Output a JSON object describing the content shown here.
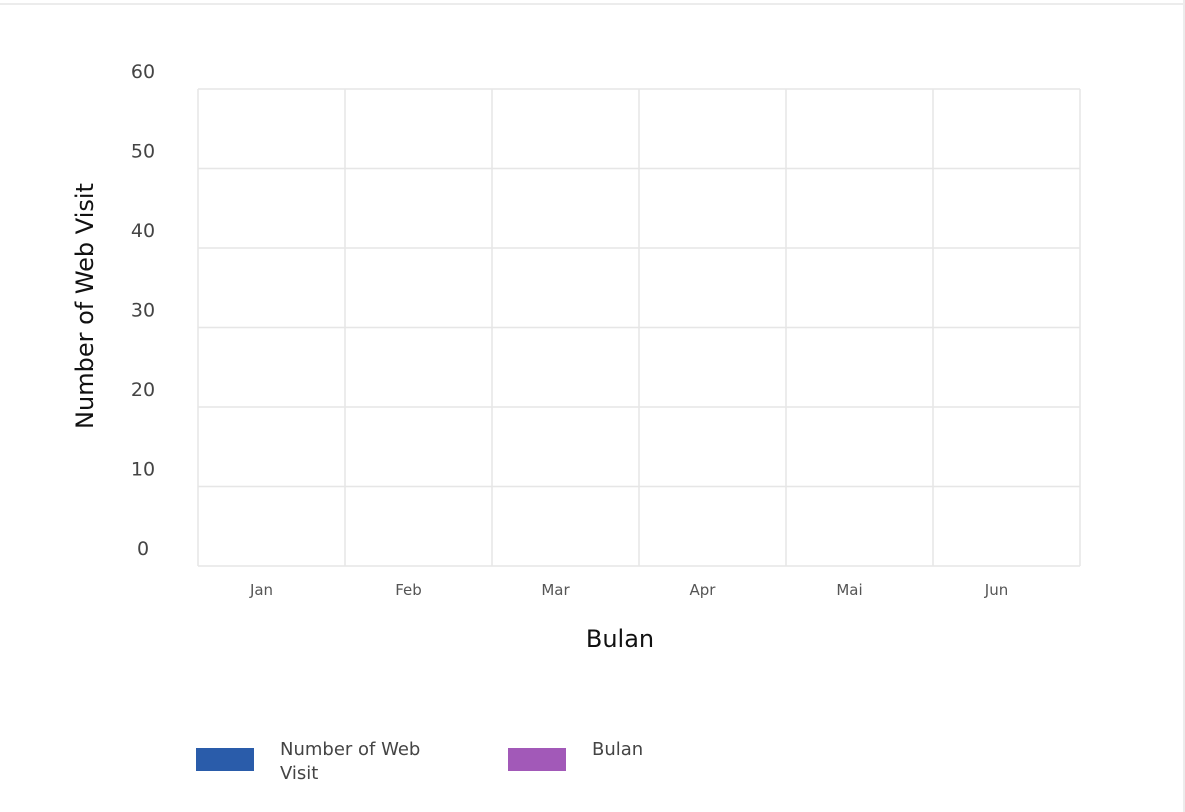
{
  "chart_data": {
    "type": "bar",
    "categories": [
      "Jan",
      "Feb",
      "Mar",
      "Apr",
      "Mai",
      "Jun"
    ],
    "series": [
      {
        "name": "Number of Web Visit",
        "values": [
          0,
          0,
          0,
          0,
          0,
          0
        ],
        "color": "#2a5caa"
      },
      {
        "name": "Bulan",
        "values": [
          0,
          0,
          0,
          0,
          0,
          0
        ],
        "color": "#a259b8"
      }
    ],
    "xlabel": "Bulan",
    "ylabel": "Number of Web Visit",
    "ylim": [
      0,
      60
    ],
    "yticks": [
      0,
      10,
      20,
      30,
      40,
      50,
      60
    ],
    "grid": true,
    "legend_position": "bottom"
  }
}
